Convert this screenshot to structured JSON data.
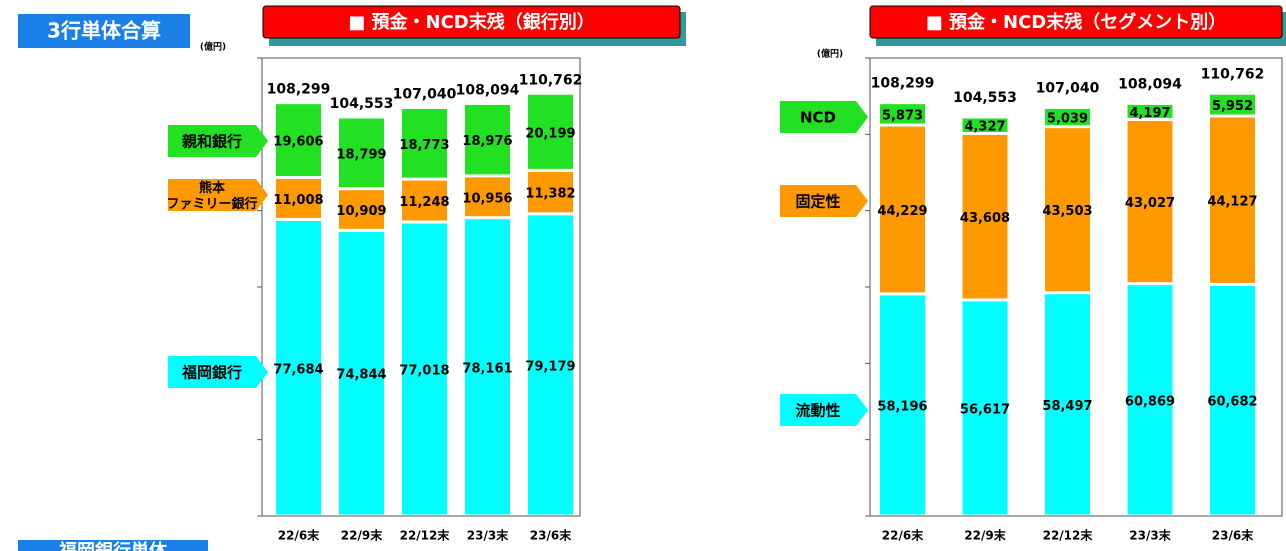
{
  "header": {
    "title": "3行単体合算",
    "unit_left": "(億円)",
    "unit_right": "(億円)",
    "footer": "福岡銀行単体"
  },
  "chart_data": [
    {
      "type": "stacked_bar",
      "title": "■ 預金・NCD末残（銀行別）",
      "categories": [
        "22/6末",
        "22/9末",
        "22/12末",
        "23/3末",
        "23/6末"
      ],
      "series": [
        {
          "name": "福岡銀行",
          "color": "#00ffff",
          "values": [
            77684,
            74844,
            77018,
            78161,
            79179
          ],
          "value_labels": [
            "77,684",
            "74,844",
            "77,018",
            "78,161",
            "79,179"
          ]
        },
        {
          "name": "熊本\nファミリー銀行",
          "color": "#ff9900",
          "values": [
            11008,
            10909,
            11248,
            10956,
            11382
          ],
          "value_labels": [
            "11,008",
            "10,909",
            "11,248",
            "10,956",
            "11,382"
          ]
        },
        {
          "name": "親和銀行",
          "color": "#22e022",
          "values": [
            19606,
            18799,
            18773,
            18976,
            20199
          ],
          "value_labels": [
            "19,606",
            "18,799",
            "18,773",
            "18,976",
            "20,199"
          ]
        }
      ],
      "totals": [
        108299,
        104553,
        107040,
        108094,
        110762
      ],
      "totals_labels": [
        "108,299",
        "104,553",
        "107,040",
        "108,094",
        "110,762"
      ],
      "ylim": [
        0,
        120000
      ],
      "yticks": [
        0,
        20000,
        40000,
        60000,
        80000,
        100000,
        120000
      ]
    },
    {
      "type": "stacked_bar",
      "title": "■ 預金・NCD末残（セグメント別）",
      "categories": [
        "22/6末",
        "22/9末",
        "22/12末",
        "23/3末",
        "23/6末"
      ],
      "series": [
        {
          "name": "流動性",
          "color": "#00ffff",
          "values": [
            58196,
            56617,
            58497,
            60869,
            60682
          ],
          "value_labels": [
            "58,196",
            "56,617",
            "58,497",
            "60,869",
            "60,682"
          ]
        },
        {
          "name": "固定性",
          "color": "#ff9900",
          "values": [
            44229,
            43608,
            43503,
            43027,
            44127
          ],
          "value_labels": [
            "44,229",
            "43,608",
            "43,503",
            "43,027",
            "44,127"
          ]
        },
        {
          "name": "NCD",
          "color": "#22e022",
          "values": [
            5873,
            4327,
            5039,
            4197,
            5952
          ],
          "value_labels": [
            "5,873",
            "4,327",
            "5,039",
            "4,197",
            "5,952"
          ]
        }
      ],
      "totals": [
        108299,
        104553,
        107040,
        108094,
        110762
      ],
      "totals_labels": [
        "108,299",
        "104,553",
        "107,040",
        "108,094",
        "110,762"
      ],
      "ylim": [
        0,
        120000
      ],
      "yticks": [
        0,
        20000,
        40000,
        60000,
        80000,
        100000,
        120000
      ]
    }
  ]
}
